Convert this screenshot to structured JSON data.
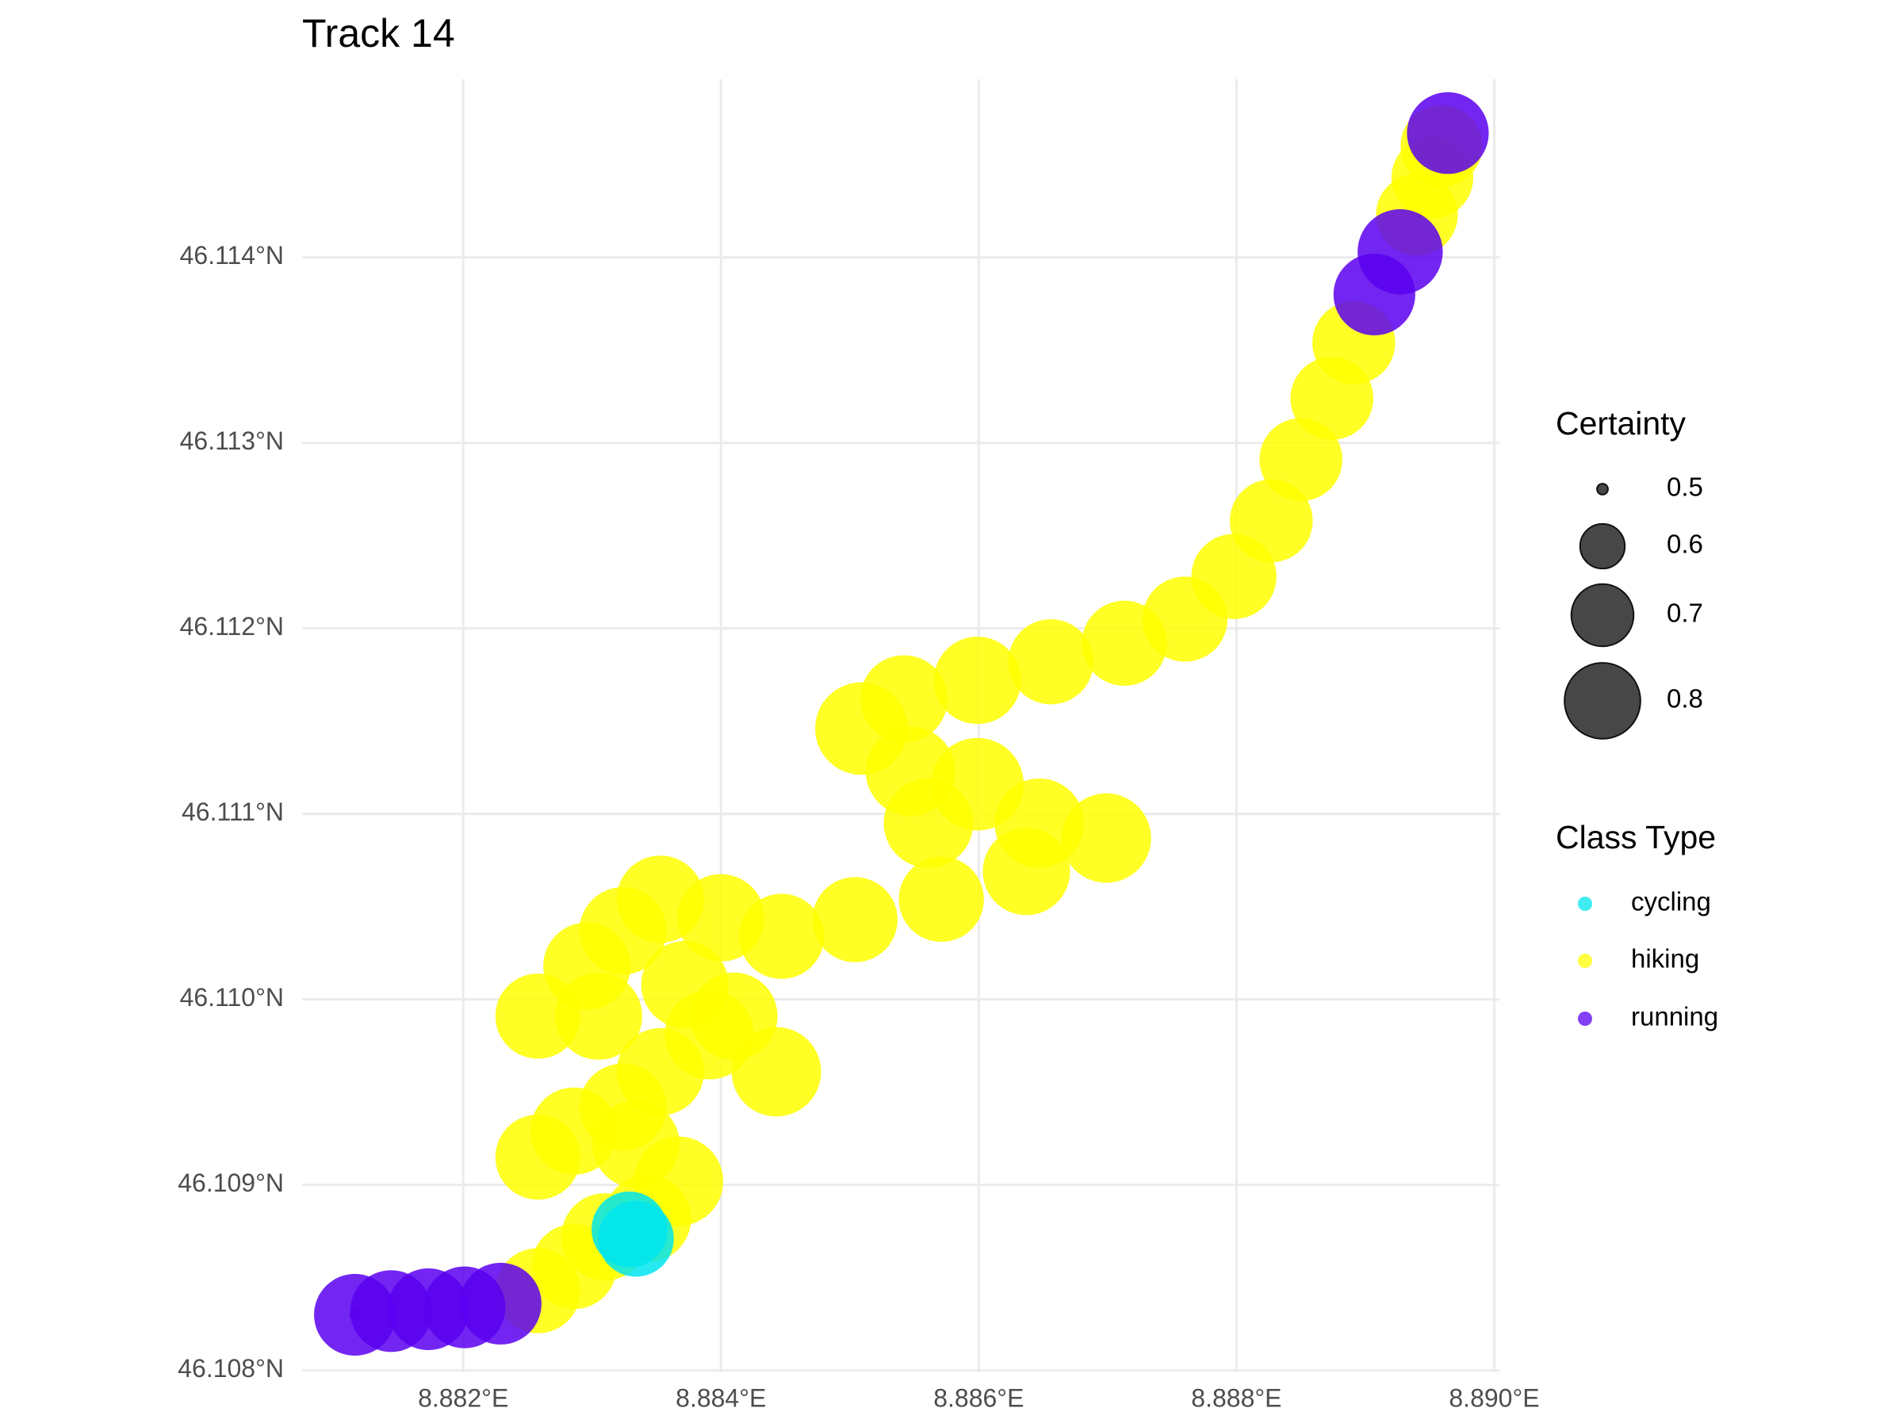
{
  "chart_data": {
    "type": "scatter",
    "title": "Track 14",
    "xlim": [
      8.88075,
      8.89004
    ],
    "ylim": [
      46.10799,
      46.11496
    ],
    "xticks": [
      {
        "value": 8.882,
        "label": "8.882°E"
      },
      {
        "value": 8.884,
        "label": "8.884°E"
      },
      {
        "value": 8.886,
        "label": "8.886°E"
      },
      {
        "value": 8.888,
        "label": "8.888°E"
      },
      {
        "value": 8.89,
        "label": "8.890°E"
      }
    ],
    "yticks": [
      {
        "value": 46.108,
        "label": "46.108°N"
      },
      {
        "value": 46.109,
        "label": "46.109°N"
      },
      {
        "value": 46.11,
        "label": "46.110°N"
      },
      {
        "value": 46.111,
        "label": "46.111°N"
      },
      {
        "value": 46.112,
        "label": "46.112°N"
      },
      {
        "value": 46.113,
        "label": "46.113°N"
      },
      {
        "value": 46.114,
        "label": "46.114°N"
      }
    ],
    "grid": true,
    "size_legend": {
      "title": "Certainty",
      "values": [
        0.5,
        0.6,
        0.7,
        0.8
      ]
    },
    "color_legend_title": "Class Type",
    "series": [
      {
        "name": "cycling",
        "color": "#00E5EE",
        "x": [
          8.88329,
          8.88334
        ],
        "values": [
          46.10876,
          46.10871
        ],
        "sizes": [
          0.8,
          0.8
        ]
      },
      {
        "name": "hiking",
        "color": "#FFFF00",
        "x": [
          8.88258,
          8.88286,
          8.8831,
          8.88343,
          8.88367,
          8.88334,
          8.88286,
          8.88258,
          8.88324,
          8.88353,
          8.88391,
          8.88443,
          8.8841,
          8.88372,
          8.88305,
          8.88258,
          8.88296,
          8.88324,
          8.88353,
          8.884,
          8.88447,
          8.88504,
          8.88571,
          8.88637,
          8.88699,
          8.88647,
          8.88561,
          8.88599,
          8.88547,
          8.88509,
          8.88542,
          8.88599,
          8.88656,
          8.88713,
          8.8876,
          8.88798,
          8.88827,
          8.8885,
          8.88874,
          8.88891,
          8.8894,
          8.88952,
          8.88959
        ],
        "values": [
          46.10843,
          46.10856,
          46.10872,
          46.10882,
          46.10902,
          46.10922,
          46.10929,
          46.10915,
          46.10942,
          46.10961,
          46.10981,
          46.10961,
          46.10991,
          46.11008,
          46.10991,
          46.10991,
          46.11018,
          46.11037,
          46.11054,
          46.11044,
          46.11034,
          46.11043,
          46.11054,
          46.11069,
          46.11087,
          46.11095,
          46.11095,
          46.11116,
          46.11123,
          46.11146,
          46.11162,
          46.11172,
          46.11182,
          46.11192,
          46.11205,
          46.11228,
          46.11258,
          46.11291,
          46.11324,
          46.11354,
          46.11423,
          46.11443,
          46.1146
        ],
        "sizes": [
          0.88,
          0.88,
          0.9,
          0.9,
          0.92,
          0.9,
          0.9,
          0.88,
          0.9,
          0.9,
          0.92,
          0.92,
          0.9,
          0.9,
          0.9,
          0.88,
          0.9,
          0.9,
          0.9,
          0.9,
          0.88,
          0.88,
          0.88,
          0.9,
          0.92,
          0.92,
          0.92,
          0.95,
          0.92,
          0.95,
          0.9,
          0.9,
          0.88,
          0.88,
          0.88,
          0.88,
          0.86,
          0.86,
          0.86,
          0.86,
          0.85,
          0.85,
          0.85
        ]
      },
      {
        "name": "running",
        "color": "#5A00F0",
        "x": [
          8.88116,
          8.88144,
          8.88173,
          8.88201,
          8.88229,
          8.88907,
          8.88927,
          8.88964,
          8.88116
        ],
        "values": [
          46.1083,
          46.10832,
          46.10833,
          46.10834,
          46.10836,
          46.1138,
          46.11403,
          46.11467,
          46.1083
        ],
        "sizes": [
          0.85,
          0.85,
          0.85,
          0.85,
          0.85,
          0.85,
          0.88,
          0.85,
          0.5
        ]
      }
    ]
  }
}
